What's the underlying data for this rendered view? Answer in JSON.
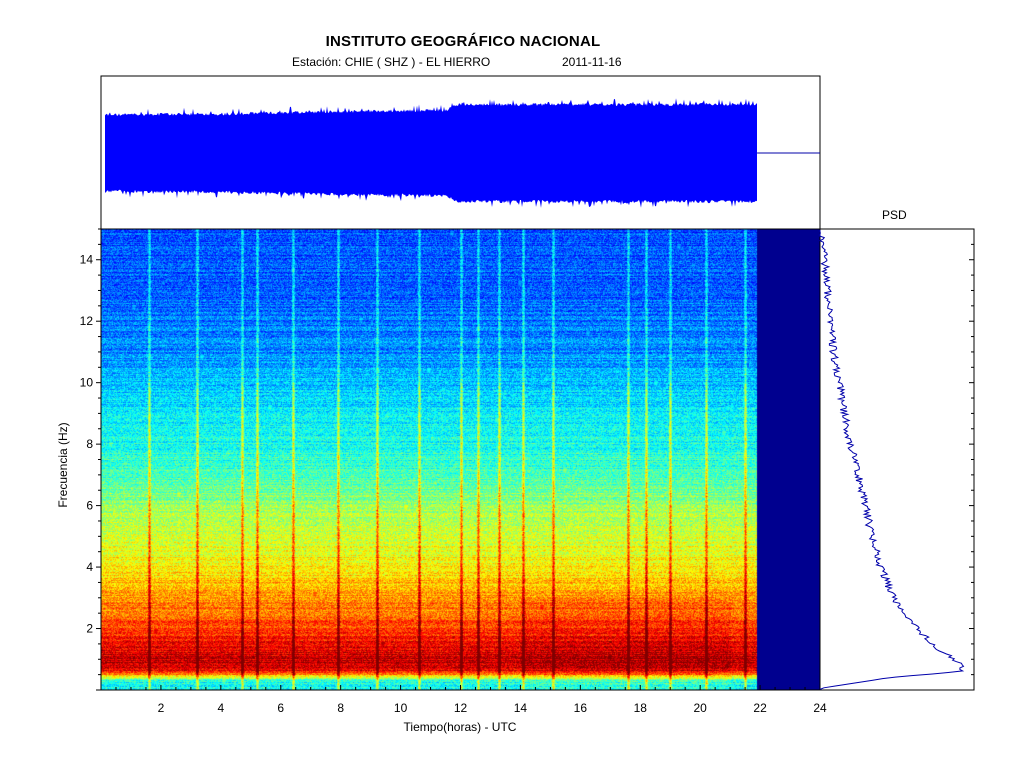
{
  "header": {
    "institution": "INSTITUTO GEOGRÁFICO NACIONAL",
    "station_label": "Estación:  CHIE ( SHZ ) - EL HIERRO",
    "date": "2011-11-16"
  },
  "chart_data": [
    {
      "type": "area",
      "name_hint": "waveform",
      "xlim": [
        0,
        24
      ],
      "data_until_hours": 21.9,
      "envelope_relative": [
        {
          "x": 0.0,
          "amp": 0.78
        },
        {
          "x": 4.0,
          "amp": 0.8
        },
        {
          "x": 8.0,
          "amp": 0.85
        },
        {
          "x": 11.5,
          "amp": 0.88
        },
        {
          "x": 11.9,
          "amp": 1.0
        },
        {
          "x": 21.9,
          "amp": 1.0
        }
      ],
      "after_end": "flat line"
    },
    {
      "type": "heatmap",
      "xlabel": "Tiempo(horas) - UTC",
      "ylabel": "Frecuencia  (Hz)",
      "xlim": [
        0,
        24
      ],
      "ylim": [
        0,
        15
      ],
      "x_ticks": [
        "2",
        "4",
        "6",
        "8",
        "10",
        "12",
        "14",
        "16",
        "18",
        "20",
        "22",
        "24"
      ],
      "y_ticks": [
        "2",
        "4",
        "6",
        "8",
        "10",
        "12",
        "14"
      ],
      "data_until_hours": 21.9,
      "colormap": "jet",
      "no_data_color": "#00008f",
      "energy_by_frequency_hz": [
        {
          "f": 0.3,
          "level": 0.4
        },
        {
          "f": 0.6,
          "level": 0.86
        },
        {
          "f": 0.9,
          "level": 0.95
        },
        {
          "f": 1.3,
          "level": 0.9
        },
        {
          "f": 2.0,
          "level": 0.82
        },
        {
          "f": 3.0,
          "level": 0.72
        },
        {
          "f": 4.0,
          "level": 0.64
        },
        {
          "f": 5.0,
          "level": 0.58
        },
        {
          "f": 6.0,
          "level": 0.52
        },
        {
          "f": 7.0,
          "level": 0.45
        },
        {
          "f": 8.0,
          "level": 0.4
        },
        {
          "f": 9.0,
          "level": 0.36
        },
        {
          "f": 10.0,
          "level": 0.31
        },
        {
          "f": 11.0,
          "level": 0.26
        },
        {
          "f": 12.0,
          "level": 0.24
        },
        {
          "f": 13.0,
          "level": 0.22
        },
        {
          "f": 15.0,
          "level": 0.2
        }
      ],
      "transient_lines_hours": [
        1.6,
        3.2,
        4.7,
        5.2,
        6.4,
        7.9,
        9.2,
        10.6,
        12.0,
        12.6,
        13.3,
        14.1,
        15.1,
        17.6,
        18.2,
        19.0,
        20.2,
        21.5
      ]
    },
    {
      "type": "line",
      "title": "PSD",
      "ylim": [
        0,
        15
      ],
      "points": [
        {
          "f": 0.05,
          "v": 0.0
        },
        {
          "f": 0.4,
          "v": 0.45
        },
        {
          "f": 0.6,
          "v": 0.92
        },
        {
          "f": 0.8,
          "v": 0.96
        },
        {
          "f": 1.0,
          "v": 0.88
        },
        {
          "f": 1.3,
          "v": 0.78
        },
        {
          "f": 1.7,
          "v": 0.7
        },
        {
          "f": 2.0,
          "v": 0.64
        },
        {
          "f": 2.5,
          "v": 0.56
        },
        {
          "f": 3.0,
          "v": 0.48
        },
        {
          "f": 4.0,
          "v": 0.4
        },
        {
          "f": 5.0,
          "v": 0.34
        },
        {
          "f": 6.0,
          "v": 0.3
        },
        {
          "f": 7.0,
          "v": 0.25
        },
        {
          "f": 8.0,
          "v": 0.2
        },
        {
          "f": 9.0,
          "v": 0.16
        },
        {
          "f": 10.0,
          "v": 0.13
        },
        {
          "f": 11.0,
          "v": 0.09
        },
        {
          "f": 12.0,
          "v": 0.07
        },
        {
          "f": 13.0,
          "v": 0.05
        },
        {
          "f": 14.0,
          "v": 0.03
        },
        {
          "f": 15.0,
          "v": 0.0
        }
      ],
      "line_color": "#0000aa"
    }
  ]
}
